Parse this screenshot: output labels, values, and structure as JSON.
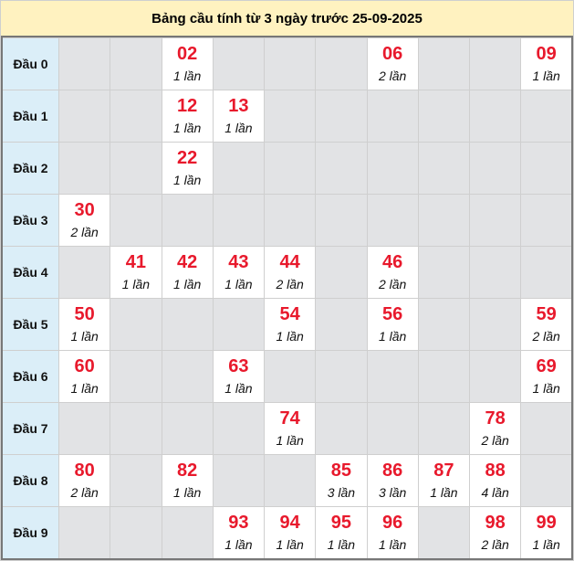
{
  "title": "Bảng cầu tính từ 3 ngày trước 25-09-2025",
  "colors": {
    "number": "#e8192c",
    "header_bg": "#dbeef8",
    "empty_bg": "#e2e3e5",
    "title_bg": "#fff2c0"
  },
  "rows": [
    {
      "label": "Đầu 0",
      "cells": [
        null,
        null,
        {
          "num": "02",
          "count": "1 lần"
        },
        null,
        null,
        null,
        {
          "num": "06",
          "count": "2 lần"
        },
        null,
        null,
        {
          "num": "09",
          "count": "1 lần"
        }
      ]
    },
    {
      "label": "Đầu 1",
      "cells": [
        null,
        null,
        {
          "num": "12",
          "count": "1 lần"
        },
        {
          "num": "13",
          "count": "1 lần"
        },
        null,
        null,
        null,
        null,
        null,
        null
      ]
    },
    {
      "label": "Đầu 2",
      "cells": [
        null,
        null,
        {
          "num": "22",
          "count": "1 lần"
        },
        null,
        null,
        null,
        null,
        null,
        null,
        null
      ]
    },
    {
      "label": "Đầu 3",
      "cells": [
        {
          "num": "30",
          "count": "2 lần"
        },
        null,
        null,
        null,
        null,
        null,
        null,
        null,
        null,
        null
      ]
    },
    {
      "label": "Đầu 4",
      "cells": [
        null,
        {
          "num": "41",
          "count": "1 lần"
        },
        {
          "num": "42",
          "count": "1 lần"
        },
        {
          "num": "43",
          "count": "1 lần"
        },
        {
          "num": "44",
          "count": "2 lần"
        },
        null,
        {
          "num": "46",
          "count": "2 lần"
        },
        null,
        null,
        null
      ]
    },
    {
      "label": "Đầu 5",
      "cells": [
        {
          "num": "50",
          "count": "1 lần"
        },
        null,
        null,
        null,
        {
          "num": "54",
          "count": "1 lần"
        },
        null,
        {
          "num": "56",
          "count": "1 lần"
        },
        null,
        null,
        {
          "num": "59",
          "count": "2 lần"
        }
      ]
    },
    {
      "label": "Đầu 6",
      "cells": [
        {
          "num": "60",
          "count": "1 lần"
        },
        null,
        null,
        {
          "num": "63",
          "count": "1 lần"
        },
        null,
        null,
        null,
        null,
        null,
        {
          "num": "69",
          "count": "1 lần"
        }
      ]
    },
    {
      "label": "Đầu 7",
      "cells": [
        null,
        null,
        null,
        null,
        {
          "num": "74",
          "count": "1 lần"
        },
        null,
        null,
        null,
        {
          "num": "78",
          "count": "2 lần"
        },
        null
      ]
    },
    {
      "label": "Đầu 8",
      "cells": [
        {
          "num": "80",
          "count": "2 lần"
        },
        null,
        {
          "num": "82",
          "count": "1 lần"
        },
        null,
        null,
        {
          "num": "85",
          "count": "3 lần"
        },
        {
          "num": "86",
          "count": "3 lần"
        },
        {
          "num": "87",
          "count": "1 lần"
        },
        {
          "num": "88",
          "count": "4 lần"
        },
        null
      ]
    },
    {
      "label": "Đầu 9",
      "cells": [
        null,
        null,
        null,
        {
          "num": "93",
          "count": "1 lần"
        },
        {
          "num": "94",
          "count": "1 lần"
        },
        {
          "num": "95",
          "count": "1 lần"
        },
        {
          "num": "96",
          "count": "1 lần"
        },
        null,
        {
          "num": "98",
          "count": "2 lần"
        },
        {
          "num": "99",
          "count": "1 lần"
        }
      ]
    }
  ]
}
